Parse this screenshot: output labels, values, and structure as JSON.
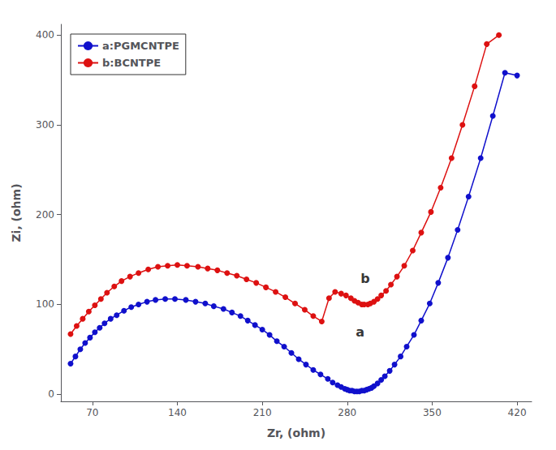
{
  "chart_data": {
    "type": "line",
    "xlabel": "Zr, (ohm)",
    "ylabel": "Zi, (ohm)",
    "xlim": [
      44,
      432
    ],
    "ylim": [
      -8,
      412
    ],
    "xticks": [
      70,
      140,
      210,
      280,
      350,
      420
    ],
    "yticks": [
      0,
      100,
      200,
      300,
      400
    ],
    "grid": false,
    "legend": "upper left",
    "marker": "circle",
    "series": [
      {
        "name": "a:PGMCNTPE",
        "color": "#1010cc",
        "x": [
          52,
          56,
          60,
          64,
          68,
          72,
          76,
          80,
          85,
          90,
          96,
          102,
          108,
          115,
          122,
          130,
          138,
          147,
          155,
          163,
          170,
          178,
          185,
          192,
          198,
          204,
          210,
          216,
          222,
          228,
          234,
          240,
          246,
          252,
          258,
          264,
          268,
          272,
          275,
          278,
          280,
          282,
          284,
          286,
          288,
          290,
          292,
          294,
          296,
          298,
          300,
          302,
          305,
          308,
          311,
          315,
          319,
          324,
          329,
          335,
          341,
          348,
          355,
          363,
          371,
          380,
          390,
          400,
          410,
          420
        ],
        "values": [
          34,
          42,
          50,
          57,
          63,
          69,
          74,
          79,
          84,
          88,
          93,
          97,
          100,
          103,
          105,
          106,
          106,
          105,
          103,
          101,
          98,
          95,
          91,
          87,
          82,
          77,
          72,
          66,
          59,
          53,
          46,
          39,
          33,
          27,
          22,
          17,
          13,
          10,
          8,
          6,
          5,
          4,
          4,
          3,
          3,
          3,
          4,
          4,
          5,
          6,
          7,
          9,
          12,
          16,
          20,
          26,
          33,
          42,
          53,
          66,
          82,
          101,
          124,
          152,
          183,
          220,
          263,
          310,
          358,
          355
        ]
      },
      {
        "name": "b:BCNTPE",
        "color": "#dd1111",
        "x": [
          52,
          57,
          62,
          67,
          72,
          77,
          82,
          88,
          94,
          101,
          108,
          116,
          124,
          132,
          140,
          148,
          157,
          165,
          173,
          181,
          189,
          197,
          205,
          213,
          221,
          229,
          237,
          245,
          252,
          259,
          265,
          270,
          275,
          279,
          283,
          286,
          289,
          292,
          294,
          297,
          299,
          302,
          305,
          308,
          312,
          316,
          321,
          327,
          334,
          341,
          349,
          357,
          366,
          375,
          385,
          395,
          405
        ],
        "values": [
          67,
          76,
          84,
          92,
          99,
          106,
          113,
          120,
          126,
          131,
          135,
          139,
          142,
          143,
          144,
          143,
          142,
          140,
          138,
          135,
          132,
          128,
          124,
          119,
          114,
          108,
          101,
          94,
          87,
          81,
          107,
          114,
          112,
          110,
          107,
          104,
          102,
          100,
          100,
          100,
          101,
          103,
          106,
          110,
          115,
          122,
          131,
          143,
          160,
          180,
          203,
          230,
          263,
          300,
          343,
          390,
          400
        ]
      }
    ],
    "annotations": [
      {
        "text": "a",
        "x": 287,
        "y": 62
      },
      {
        "text": "b",
        "x": 291,
        "y": 122
      }
    ]
  }
}
